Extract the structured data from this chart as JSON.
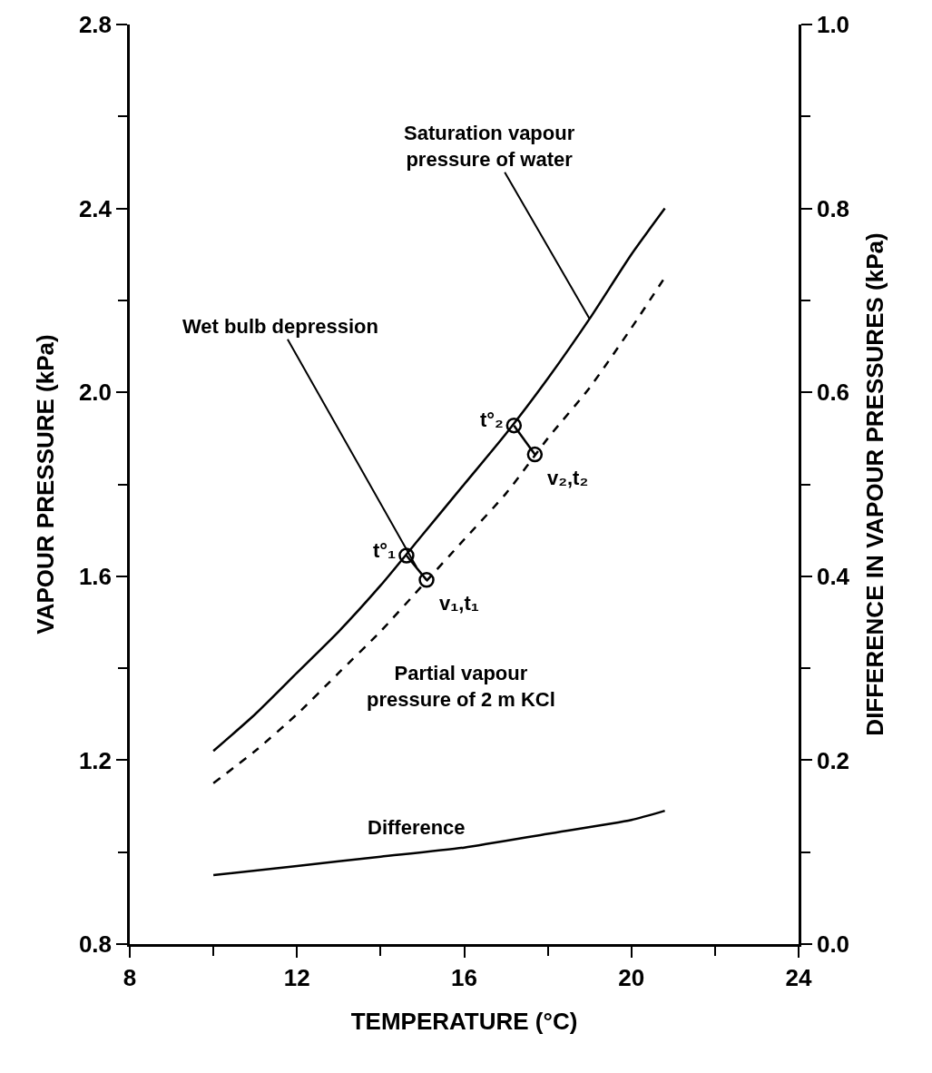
{
  "chart_data": {
    "type": "line",
    "xlabel": "TEMPERATURE (°C)",
    "ylabel": "VAPOUR PRESSURE (kPa)",
    "y2label": "DIFFERENCE IN VAPOUR PRESSURES (kPa)",
    "x": [
      10,
      11,
      12,
      13,
      14,
      15,
      16,
      17,
      18,
      19,
      20,
      20.8
    ],
    "series": [
      {
        "name": "Saturation vapour\npressure of water",
        "color": "#000000",
        "line_style": "solid",
        "values": [
          1.22,
          1.3,
          1.39,
          1.48,
          1.58,
          1.69,
          1.8,
          1.91,
          2.03,
          2.16,
          2.3,
          2.4
        ]
      },
      {
        "name": "Partial vapour\npressure of 2 m KCl",
        "color": "#000000",
        "line_style": "dashed",
        "values": [
          1.15,
          1.22,
          1.3,
          1.39,
          1.48,
          1.58,
          1.68,
          1.78,
          1.9,
          2.01,
          2.14,
          2.25
        ]
      },
      {
        "name": "Difference",
        "color": "#000000",
        "line_style": "solid",
        "axis": "y2",
        "x": [
          10,
          12,
          14,
          16,
          18,
          20,
          20.8
        ],
        "values": [
          0.075,
          0.085,
          0.095,
          0.105,
          0.12,
          0.135,
          0.145
        ]
      },
      {
        "color": "#000000",
        "line_style": "solid",
        "marker": "circle",
        "x": [
          14.62,
          15.1,
          16,
          17.19,
          17.69
        ],
        "values": [
          1.645,
          1.592,
          null,
          1.928,
          1.865
        ]
      }
    ],
    "annotations": [
      {
        "text": "Wet bulb depression",
        "x": 14.86,
        "y": 1.62
      },
      {
        "text": "t°₁",
        "x": 14.62,
        "y": 1.645
      },
      {
        "text": "v₁,t₁",
        "x": 15.1,
        "y": 1.592
      },
      {
        "text": "t°₂",
        "x": 17.19,
        "y": 1.928
      },
      {
        "text": "v₂,t₂",
        "x": 17.69,
        "y": 1.865
      }
    ],
    "xlim": [
      8,
      24
    ],
    "xticks": [
      8,
      12,
      16,
      20,
      24
    ],
    "ylim": [
      0.8,
      2.8
    ],
    "yticks": [
      {
        "value": 0.8,
        "label": "0.8"
      },
      {
        "value": 1.2,
        "label": "1.2"
      },
      {
        "value": 1.6,
        "label": "1.6"
      },
      {
        "value": 2.0,
        "label": "2.0"
      },
      {
        "value": 2.4,
        "label": "2.4"
      },
      {
        "value": 2.8,
        "label": "2.8"
      }
    ],
    "y2lim": [
      0,
      1.0
    ],
    "y2ticks": [
      {
        "value": 0,
        "label": "0.0"
      },
      {
        "value": 0.2,
        "label": "0.2"
      },
      {
        "value": 0.4,
        "label": "0.4"
      },
      {
        "value": 0.6,
        "label": "0.6"
      },
      {
        "value": 0.8,
        "label": "0.8"
      },
      {
        "value": 1.0,
        "label": "1.0"
      }
    ]
  }
}
